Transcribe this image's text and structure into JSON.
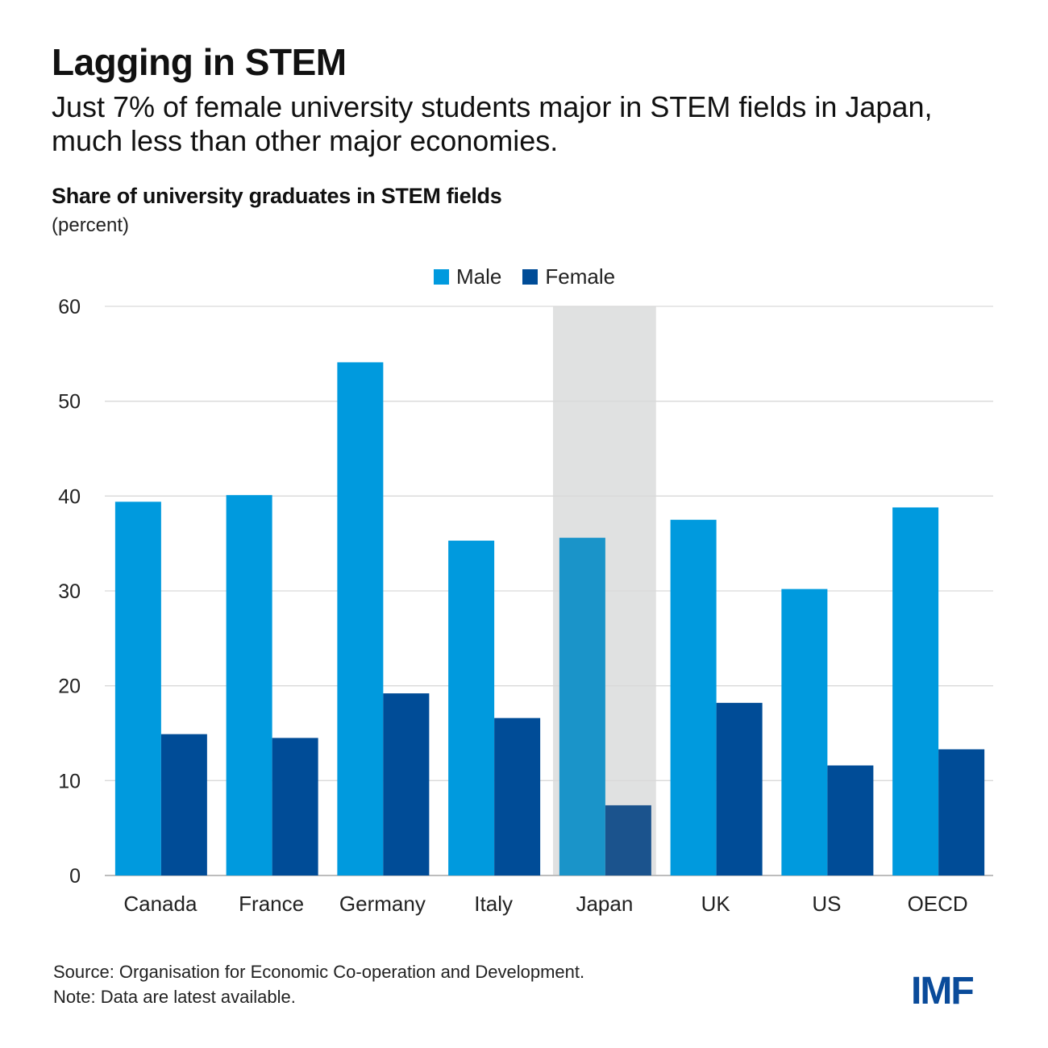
{
  "header": {
    "title": "Lagging in STEM",
    "subtitle": "Just 7% of female university students major in STEM fields in Japan, much less than other major economies."
  },
  "chart_data": {
    "type": "bar",
    "title": "Share of university graduates in STEM fields",
    "unit_label": "(percent)",
    "xlabel": "",
    "ylabel": "",
    "categories": [
      "Canada",
      "France",
      "Germany",
      "Italy",
      "Japan",
      "UK",
      "US",
      "OECD"
    ],
    "series": [
      {
        "name": "Male",
        "color": "#009ade",
        "values": [
          39.4,
          40.1,
          54.1,
          35.3,
          35.6,
          37.5,
          30.2,
          38.8
        ]
      },
      {
        "name": "Female",
        "color": "#004c97",
        "values": [
          14.9,
          14.5,
          19.2,
          16.6,
          7.4,
          18.2,
          11.6,
          13.3
        ]
      }
    ],
    "ylim": [
      0,
      60
    ],
    "yticks": [
      0,
      10,
      20,
      30,
      40,
      50,
      60
    ],
    "grid": true,
    "legend_position": "top-center",
    "highlight": {
      "category": "Japan",
      "color": "#e0e1e1",
      "male_color": "#1a94c9",
      "female_color": "#1b538d"
    }
  },
  "footer": {
    "source": "Source: Organisation for Economic Co-operation and Development.",
    "note": "Note: Data are latest available."
  },
  "logo": {
    "text": "IMF",
    "color": "#0a4b9a"
  }
}
